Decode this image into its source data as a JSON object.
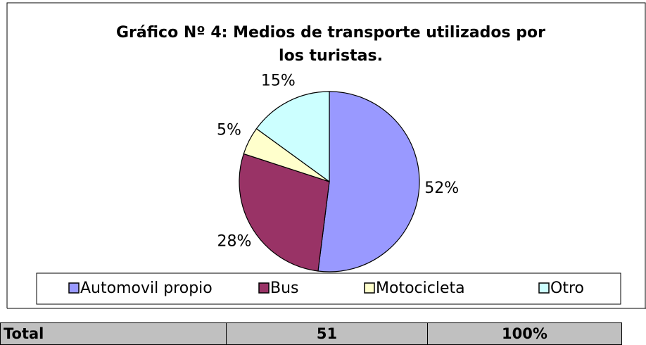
{
  "chart_data": {
    "type": "pie",
    "title": [
      "Gráfico Nº 4: Medios de transporte utilizados por",
      "los turistas."
    ],
    "categories": [
      "Automovil propio",
      "Bus",
      "Motocicleta",
      "Otro"
    ],
    "values": [
      52,
      28,
      5,
      15
    ],
    "value_labels": [
      "52%",
      "28%",
      "5%",
      "15%"
    ],
    "colors": [
      "#9999ff",
      "#993366",
      "#ffffcc",
      "#ccffff"
    ],
    "legend": "bottom"
  },
  "table": {
    "rows": [
      [
        "Total",
        "51",
        "100%"
      ]
    ]
  }
}
